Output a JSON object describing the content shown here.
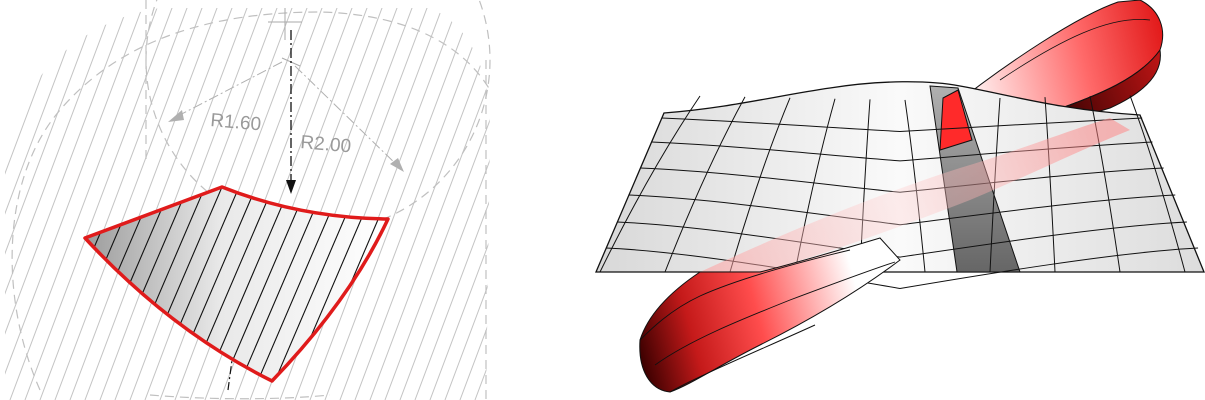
{
  "figure": {
    "left_panel": {
      "dimension_inner": "R1.60",
      "dimension_outer": "R2.00"
    }
  },
  "colors": {
    "accent_red": "#e01b1b",
    "construction_gray": "#b5b5b5",
    "label_gray": "#9a9a9a",
    "ink": "#111111"
  }
}
